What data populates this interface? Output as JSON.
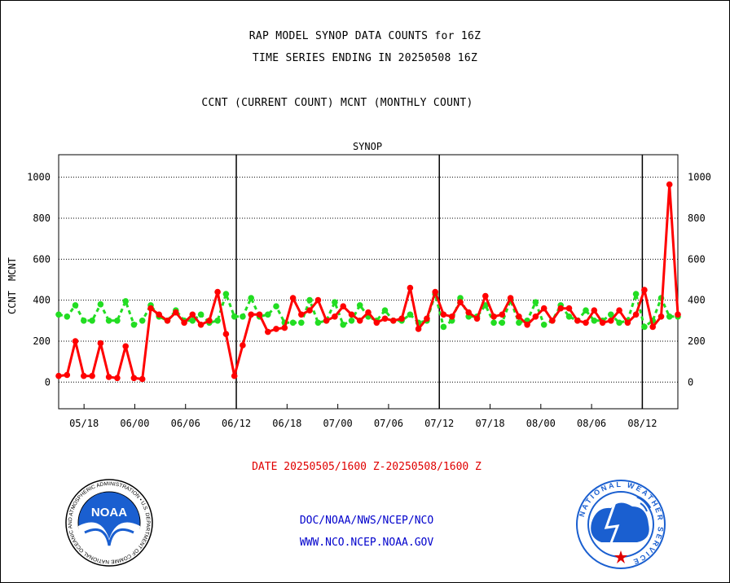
{
  "titles": {
    "line1": "RAP MODEL SYNOP DATA COUNTS for 16Z",
    "line2": "TIME SERIES ENDING IN 20250508 16Z",
    "line3": "CCNT (CURRENT COUNT) MCNT (MONTHLY COUNT)"
  },
  "footer": {
    "date_range": "DATE 20250505/1600 Z-20250508/1600 Z",
    "org": "DOC/NOAA/NWS/NCEP/NCO",
    "url": "WWW.NCO.NCEP.NOAA.GOV"
  },
  "logos": {
    "noaa": {
      "label": "NOAA",
      "ring_text": "NATIONAL OCEANIC AND ATMOSPHERIC ADMINISTRATION • U.S. DEPARTMENT OF COMMERCE"
    },
    "nws": {
      "ring_text": "NATIONAL WEATHER SERVICE"
    }
  },
  "colors": {
    "ccnt": "#ff0000",
    "mcnt": "#22dd22",
    "label_blue": "#0000cc"
  },
  "chart_data": {
    "type": "line",
    "title": "SYNOP",
    "ylabel_ccnt": "CCNT",
    "ylabel_mcnt": "MCNT",
    "ylim": [
      -130,
      1110
    ],
    "yticks": [
      0,
      200,
      400,
      600,
      800,
      1000
    ],
    "xlim": [
      0,
      61
    ],
    "x_ticks": [
      {
        "label": "05/18",
        "x": 2.5
      },
      {
        "label": "06/00",
        "x": 7.5
      },
      {
        "label": "06/06",
        "x": 12.5
      },
      {
        "label": "06/12",
        "x": 17.5
      },
      {
        "label": "06/18",
        "x": 22.5
      },
      {
        "label": "07/00",
        "x": 27.5
      },
      {
        "label": "07/06",
        "x": 32.5
      },
      {
        "label": "07/12",
        "x": 37.5
      },
      {
        "label": "07/18",
        "x": 42.5
      },
      {
        "label": "08/00",
        "x": 47.5
      },
      {
        "label": "08/06",
        "x": 52.5
      },
      {
        "label": "08/12",
        "x": 57.5
      }
    ],
    "day_boundaries": [
      17.5,
      37.5,
      57.5
    ],
    "grid": true,
    "series": [
      {
        "name": "CCNT",
        "values": [
          30,
          35,
          200,
          30,
          30,
          190,
          25,
          20,
          175,
          20,
          15,
          360,
          330,
          300,
          340,
          290,
          330,
          280,
          300,
          440,
          235,
          30,
          180,
          330,
          330,
          245,
          260,
          265,
          410,
          330,
          350,
          400,
          300,
          320,
          370,
          330,
          300,
          340,
          290,
          310,
          300,
          310,
          460,
          260,
          310,
          440,
          330,
          320,
          390,
          340,
          310,
          420,
          320,
          330,
          410,
          320,
          280,
          320,
          360,
          300,
          360,
          360,
          300,
          290,
          350,
          290,
          300,
          350,
          290,
          330,
          450,
          270,
          320,
          965,
          330
        ]
      },
      {
        "name": "MCNT",
        "values": [
          330,
          320,
          375,
          300,
          300,
          380,
          300,
          300,
          395,
          280,
          300,
          375,
          320,
          300,
          350,
          300,
          300,
          330,
          290,
          300,
          430,
          320,
          320,
          410,
          320,
          330,
          370,
          290,
          290,
          290,
          400,
          290,
          300,
          390,
          280,
          300,
          375,
          320,
          300,
          350,
          300,
          300,
          330,
          290,
          300,
          430,
          270,
          300,
          410,
          320,
          320,
          375,
          290,
          290,
          400,
          290,
          300,
          390,
          280,
          300,
          375,
          320,
          300,
          350,
          300,
          300,
          330,
          290,
          300,
          430,
          270,
          300,
          410,
          320,
          320
        ]
      }
    ]
  }
}
